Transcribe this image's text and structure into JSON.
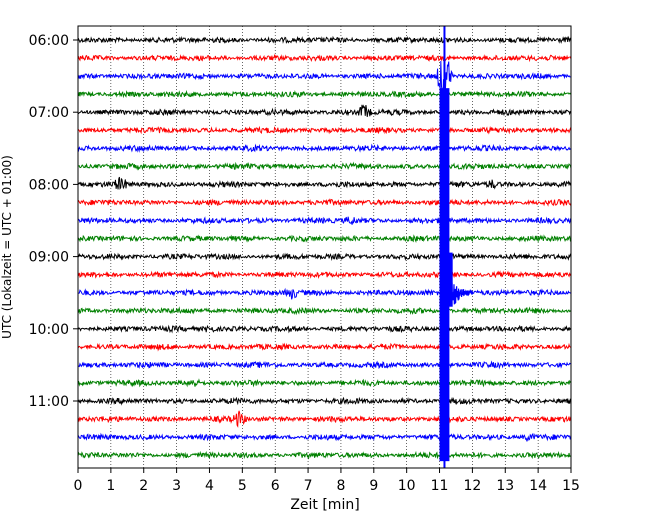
{
  "chart_data": {
    "type": "line",
    "title": "",
    "xlabel": "Zeit  [min]",
    "ylabel": "UTC (Lokalzeit = UTC + 01:00)",
    "xlim": [
      0,
      15
    ],
    "x_ticks": [
      0,
      1,
      2,
      3,
      4,
      5,
      6,
      7,
      8,
      9,
      10,
      11,
      12,
      13,
      14,
      15
    ],
    "x_tick_labels": [
      "0",
      "1",
      "2",
      "3",
      "4",
      "5",
      "6",
      "7",
      "8",
      "9",
      "10",
      "11",
      "12",
      "13",
      "14",
      "15"
    ],
    "y_tick_labels": [
      "06:00",
      "07:00",
      "08:00",
      "09:00",
      "10:00",
      "11:00"
    ],
    "y_tick_rows": [
      0,
      4,
      8,
      12,
      16,
      20
    ],
    "grid": "vertical-dotted",
    "trace_minutes": 15,
    "row_start": "06:00",
    "row_step": "00:15",
    "colors": [
      "#000000",
      "#ff0000",
      "#0000ff",
      "#008000"
    ],
    "rows": [
      {
        "start": "06:00",
        "color": "#000000",
        "events": []
      },
      {
        "start": "06:15",
        "color": "#ff0000",
        "events": []
      },
      {
        "start": "06:30",
        "color": "#0000ff",
        "events": [
          {
            "t": 11.15,
            "amp": 4.5
          }
        ]
      },
      {
        "start": "06:45",
        "color": "#008000",
        "events": []
      },
      {
        "start": "07:00",
        "color": "#000000",
        "events": [
          {
            "t": 8.7,
            "amp": 0.9
          }
        ]
      },
      {
        "start": "07:15",
        "color": "#ff0000",
        "events": []
      },
      {
        "start": "07:30",
        "color": "#0000ff",
        "events": []
      },
      {
        "start": "07:45",
        "color": "#008000",
        "events": []
      },
      {
        "start": "08:00",
        "color": "#000000",
        "events": [
          {
            "t": 1.3,
            "amp": 0.7
          },
          {
            "t": 12.6,
            "amp": 0.4
          }
        ]
      },
      {
        "start": "08:15",
        "color": "#ff0000",
        "events": []
      },
      {
        "start": "08:30",
        "color": "#0000ff",
        "events": [
          {
            "t": 8.3,
            "amp": 0.4
          }
        ]
      },
      {
        "start": "08:45",
        "color": "#008000",
        "events": []
      },
      {
        "start": "09:00",
        "color": "#000000",
        "events": []
      },
      {
        "start": "09:15",
        "color": "#ff0000",
        "events": []
      },
      {
        "start": "09:30",
        "color": "#0000ff",
        "events": [
          {
            "t": 6.5,
            "amp": 0.6
          }
        ]
      },
      {
        "start": "09:45",
        "color": "#008000",
        "events": []
      },
      {
        "start": "10:00",
        "color": "#000000",
        "events": [
          {
            "t": 4.0,
            "amp": 0.4
          }
        ]
      },
      {
        "start": "10:15",
        "color": "#ff0000",
        "events": []
      },
      {
        "start": "10:30",
        "color": "#0000ff",
        "events": []
      },
      {
        "start": "10:45",
        "color": "#008000",
        "events": [
          {
            "t": 3.5,
            "amp": 0.4
          }
        ]
      },
      {
        "start": "11:00",
        "color": "#000000",
        "events": []
      },
      {
        "start": "11:15",
        "color": "#ff0000",
        "events": [
          {
            "t": 4.9,
            "amp": 0.8
          }
        ]
      },
      {
        "start": "11:30",
        "color": "#0000ff",
        "events": [
          {
            "t": 13.7,
            "amp": 0.4
          }
        ]
      },
      {
        "start": "11:45",
        "color": "#008000",
        "events": []
      }
    ],
    "quake_band": {
      "t_start": 11.0,
      "t_end": 11.3,
      "rows": [
        3,
        23
      ]
    },
    "quake_peak": {
      "row": 14,
      "t": 11.2,
      "coda_end": 12.0
    }
  }
}
